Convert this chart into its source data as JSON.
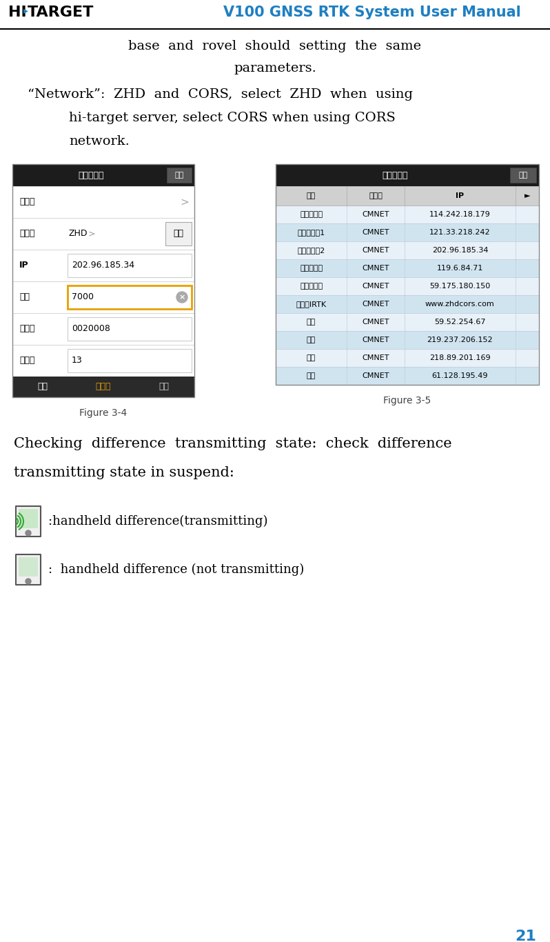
{
  "title": "V100 GNSS RTK System User Manual",
  "title_color": "#1e7fc1",
  "header_line_color": "#000000",
  "body_text_1a": "base  and  rovel  should  setting  the  same",
  "body_text_1b": "parameters.",
  "body_text_2a": "“Network”:  ZHD  and  CORS,  select  ZHD  when  using",
  "body_text_2b": "hi-target server, select CORS when using CORS",
  "body_text_2c": "network.",
  "fig34_title": "设置移动站",
  "fig34_btn": "设置",
  "fig34_rows": [
    [
      "运营商",
      "",
      ">"
    ],
    [
      "服务器",
      "ZHD",
      "选择"
    ],
    [
      "IP",
      "202.96.185.34",
      ""
    ],
    [
      "端口",
      "7000",
      "×"
    ],
    [
      "分组号",
      "0020008",
      ""
    ],
    [
      "小组号",
      "13",
      ""
    ]
  ],
  "fig34_tabs": [
    "配置",
    "数据链",
    "其他"
  ],
  "fig35_title": "服务器地址",
  "fig35_btn": "添加",
  "fig35_header": [
    "名称",
    "运营商",
    "IP",
    "►"
  ],
  "fig35_rows": [
    [
      "中海达北京",
      "CMNET",
      "114.242.18.179"
    ],
    [
      "中海达广坹1",
      "CMNET",
      "121.33.218.242"
    ],
    [
      "中海达广坹2",
      "CMNET",
      "202.96.185.34"
    ],
    [
      "中海达成都",
      "CMNET",
      "119.6.84.71"
    ],
    [
      "中海达武汉",
      "CMNET",
      "59.175.180.150"
    ],
    [
      "中海达IRTK",
      "CMNET",
      "www.zhdcors.com"
    ],
    [
      "江西",
      "CMNET",
      "59.52.254.67"
    ],
    [
      "北京",
      "CMNET",
      "219.237.206.152"
    ],
    [
      "成都",
      "CMNET",
      "218.89.201.169"
    ],
    [
      "重庆",
      "CMNET",
      "61.128.195.49"
    ]
  ],
  "fig34_caption": "Figure 3-4",
  "fig35_caption": "Figure 3-5",
  "check_text_1": "Checking  difference  transmitting  state:  check  difference",
  "check_text_2": "transmitting state in suspend:",
  "icon1_text": ":handheld difference(transmitting)",
  "icon2_text": ":  handheld difference (not transmitting)",
  "page_num": "21",
  "bg_color": "#ffffff",
  "orange_border": "#e8a000",
  "tab_active_bg": "#1a1a1a",
  "tab_active_text_color": "#ffffff",
  "tab_link_color": "#e8a000",
  "tab_normal_text": "#333333"
}
